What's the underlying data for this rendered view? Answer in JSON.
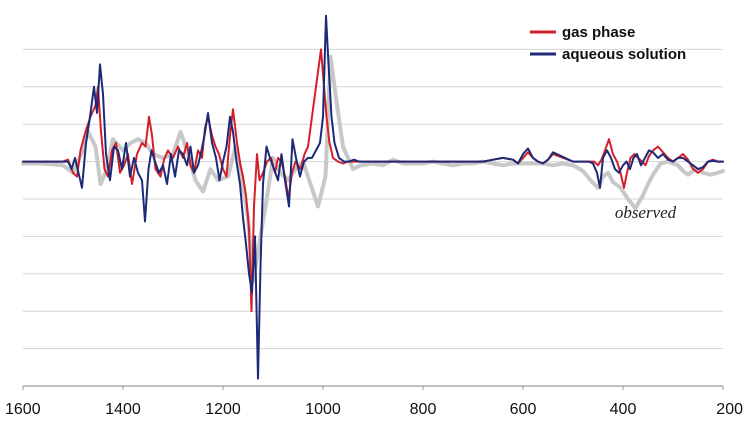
{
  "chart_data": {
    "type": "line",
    "title": "",
    "xlabel": "",
    "ylabel": "",
    "xlim": [
      1600,
      200
    ],
    "ylim": [
      -6,
      4
    ],
    "x_ticks": [
      1600,
      1400,
      1200,
      1000,
      800,
      600,
      400,
      200
    ],
    "x_tick_labels": [
      "1600",
      "1400",
      "1200",
      "1000",
      "800",
      "600",
      "400",
      "200"
    ],
    "gridlines_y": [
      -5,
      -4,
      -3,
      -2,
      -1,
      0,
      1,
      2,
      3
    ],
    "grid": true,
    "legend_position": "top-right",
    "legend": [
      {
        "name": "gas phase",
        "color": "#d41f2a"
      },
      {
        "name": "aqueous solution",
        "color": "#1c2a78"
      }
    ],
    "annotations": [
      {
        "text": "observed",
        "x": 355,
        "y": -1.3
      }
    ],
    "series": [
      {
        "name": "observed",
        "color": "#c8c8c8",
        "x": [
          1600,
          1560,
          1520,
          1500,
          1480,
          1470,
          1455,
          1445,
          1435,
          1420,
          1400,
          1385,
          1370,
          1355,
          1340,
          1320,
          1300,
          1285,
          1270,
          1255,
          1240,
          1225,
          1210,
          1190,
          1175,
          1165,
          1150,
          1140,
          1125,
          1115,
          1100,
          1085,
          1070,
          1055,
          1040,
          1025,
          1010,
          995,
          985,
          975,
          960,
          950,
          940,
          925,
          900,
          880,
          860,
          840,
          820,
          800,
          780,
          760,
          740,
          720,
          700,
          680,
          660,
          640,
          620,
          600,
          580,
          560,
          540,
          520,
          500,
          480,
          465,
          450,
          440,
          430,
          420,
          405,
          390,
          375,
          360,
          350,
          340,
          325,
          310,
          300,
          290,
          280,
          270,
          255,
          240,
          225,
          210,
          200
        ],
        "y": [
          -0.05,
          -0.05,
          -0.1,
          -0.3,
          0.3,
          0.8,
          0.4,
          -0.6,
          -0.3,
          0.6,
          0.3,
          0.5,
          0.6,
          0.5,
          0.2,
          0.1,
          0.2,
          0.8,
          0.2,
          -0.5,
          -0.8,
          -0.2,
          -0.5,
          -0.4,
          0.4,
          -0.2,
          -1.5,
          -3.2,
          -2.0,
          -1.2,
          0.1,
          -0.3,
          -0.5,
          -0.2,
          0.0,
          -0.6,
          -1.2,
          -0.4,
          2.8,
          1.8,
          0.4,
          0.1,
          -0.2,
          -0.1,
          -0.05,
          -0.1,
          0.05,
          -0.05,
          -0.05,
          -0.05,
          0.0,
          -0.05,
          -0.1,
          -0.05,
          -0.05,
          0.0,
          -0.05,
          -0.1,
          -0.05,
          -0.05,
          -0.05,
          -0.05,
          -0.1,
          -0.05,
          -0.1,
          -0.25,
          -0.5,
          -0.7,
          -0.4,
          -0.3,
          -0.55,
          -0.7,
          -1.0,
          -1.25,
          -0.9,
          -0.6,
          -0.35,
          -0.05,
          0.0,
          -0.05,
          -0.1,
          -0.25,
          -0.35,
          -0.2,
          -0.3,
          -0.35,
          -0.3,
          -0.25
        ]
      },
      {
        "name": "gas phase",
        "color": "#d41f2a",
        "x": [
          1600,
          1520,
          1510,
          1500,
          1492,
          1485,
          1475,
          1465,
          1455,
          1450,
          1444,
          1437,
          1430,
          1422,
          1414,
          1406,
          1398,
          1390,
          1382,
          1372,
          1362,
          1355,
          1348,
          1342,
          1335,
          1325,
          1318,
          1310,
          1300,
          1290,
          1280,
          1272,
          1265,
          1258,
          1250,
          1242,
          1236,
          1230,
          1222,
          1215,
          1208,
          1200,
          1193,
          1186,
          1180,
          1172,
          1165,
          1160,
          1154,
          1148,
          1143,
          1138,
          1132,
          1127,
          1120,
          1112,
          1104,
          1096,
          1090,
          1083,
          1076,
          1069,
          1062,
          1055,
          1045,
          1037,
          1030,
          1022,
          1012,
          1004,
          998,
          993,
          987,
          980,
          970,
          960,
          950,
          940,
          930,
          900,
          860,
          800,
          760,
          740,
          720,
          700,
          680,
          660,
          640,
          620,
          610,
          600,
          590,
          580,
          570,
          560,
          550,
          540,
          500,
          480,
          470,
          465,
          458,
          450,
          443,
          436,
          428,
          420,
          412,
          405,
          398,
          392,
          385,
          377,
          370,
          362,
          355,
          348,
          340,
          330,
          320,
          310,
          300,
          290,
          280,
          270,
          260,
          250,
          240,
          230,
          220,
          210,
          200
        ],
        "y": [
          0,
          0,
          0.05,
          -0.3,
          -0.4,
          0.3,
          0.8,
          1.2,
          1.5,
          2.0,
          0.8,
          -0.2,
          -0.4,
          0.3,
          0.5,
          -0.3,
          -0.1,
          0.2,
          -0.6,
          0.2,
          0.5,
          0.4,
          1.2,
          0.7,
          -0.2,
          -0.4,
          0.05,
          0.3,
          0.1,
          0.4,
          0.1,
          0.5,
          -0.1,
          -0.3,
          0.3,
          0.1,
          0.9,
          1.2,
          0.7,
          0.4,
          0.2,
          -0.2,
          -0.4,
          0.7,
          1.4,
          0.5,
          -0.1,
          -0.4,
          -0.9,
          -1.8,
          -4.0,
          -1.2,
          0.2,
          -0.5,
          -0.3,
          0.0,
          0.1,
          -0.3,
          0.1,
          0.0,
          -0.4,
          -1.0,
          -0.3,
          0.0,
          -0.2,
          0.2,
          0.4,
          1.2,
          2.2,
          3.0,
          2.0,
          1.2,
          0.5,
          0.1,
          0.0,
          -0.05,
          0.0,
          0.0,
          0.0,
          0.0,
          0.0,
          0.0,
          0.0,
          0.0,
          0.0,
          0.0,
          0.0,
          0.05,
          0.1,
          0.05,
          -0.05,
          0.1,
          0.25,
          0.1,
          0.0,
          -0.05,
          0.05,
          0.2,
          0.0,
          0.0,
          0.0,
          0.0,
          0.0,
          -0.1,
          0.05,
          0.3,
          0.6,
          0.2,
          0.0,
          -0.3,
          -0.7,
          -0.3,
          0.1,
          0.2,
          0.1,
          0.0,
          -0.1,
          0.15,
          0.3,
          0.4,
          0.25,
          0.1,
          0.0,
          0.1,
          0.2,
          0.05,
          -0.2,
          -0.3,
          -0.2,
          0.0,
          0.05,
          0.0,
          0.0
        ]
      },
      {
        "name": "aqueous solution",
        "color": "#1c2a78",
        "x": [
          1600,
          1520,
          1510,
          1503,
          1496,
          1489,
          1482,
          1474,
          1466,
          1458,
          1452,
          1446,
          1440,
          1434,
          1426,
          1418,
          1410,
          1402,
          1394,
          1386,
          1378,
          1370,
          1362,
          1356,
          1349,
          1343,
          1336,
          1328,
          1320,
          1312,
          1304,
          1296,
          1288,
          1280,
          1272,
          1265,
          1258,
          1250,
          1243,
          1237,
          1230,
          1222,
          1214,
          1207,
          1200,
          1193,
          1186,
          1180,
          1173,
          1166,
          1160,
          1154,
          1148,
          1142,
          1136,
          1130,
          1125,
          1120,
          1113,
          1106,
          1098,
          1090,
          1083,
          1076,
          1068,
          1061,
          1054,
          1046,
          1038,
          1030,
          1022,
          1014,
          1006,
          1000,
          994,
          989,
          983,
          977,
          968,
          958,
          948,
          938,
          928,
          900,
          860,
          800,
          760,
          740,
          720,
          700,
          680,
          660,
          640,
          620,
          610,
          600,
          590,
          580,
          570,
          560,
          550,
          540,
          500,
          485,
          475,
          468,
          460,
          452,
          446,
          440,
          432,
          424,
          416,
          408,
          400,
          393,
          386,
          379,
          372,
          364,
          356,
          348,
          340,
          330,
          320,
          310,
          300,
          290,
          280,
          270,
          260,
          250,
          240,
          230,
          220,
          210,
          200
        ],
        "y": [
          0,
          0,
          0.0,
          -0.2,
          0.1,
          -0.3,
          -0.7,
          0.5,
          1.2,
          2.0,
          1.3,
          2.6,
          1.8,
          0.2,
          -0.5,
          0.4,
          0.3,
          -0.2,
          0.5,
          -0.4,
          0.1,
          -0.3,
          -0.5,
          -1.6,
          -0.2,
          0.3,
          0.0,
          -0.3,
          -0.1,
          -0.6,
          0.2,
          -0.4,
          0.3,
          0.2,
          -0.1,
          0.4,
          -0.3,
          -0.1,
          0.3,
          0.7,
          1.3,
          0.5,
          0.1,
          -0.5,
          0.0,
          0.4,
          1.2,
          0.8,
          0.0,
          -0.6,
          -1.5,
          -2.2,
          -3.0,
          -3.5,
          -2.0,
          -5.8,
          -2.8,
          -0.6,
          0.4,
          0.1,
          -0.2,
          -0.5,
          0.2,
          -0.5,
          -1.2,
          0.6,
          0.1,
          -0.4,
          0.0,
          0.1,
          0.1,
          0.3,
          0.5,
          1.2,
          3.9,
          2.6,
          1.2,
          0.5,
          0.1,
          0.0,
          0.0,
          0.05,
          0.0,
          0.0,
          0.0,
          0.0,
          0.0,
          0.0,
          0.0,
          0.0,
          0.0,
          0.05,
          0.1,
          0.05,
          -0.05,
          0.2,
          0.35,
          0.1,
          0.0,
          -0.05,
          0.05,
          0.25,
          0.0,
          0.0,
          0.0,
          0.0,
          -0.05,
          -0.3,
          -0.7,
          0.1,
          0.3,
          0.1,
          -0.2,
          -0.3,
          -0.1,
          0.0,
          -0.2,
          0.1,
          0.2,
          -0.1,
          0.1,
          0.3,
          0.25,
          0.1,
          0.2,
          0.05,
          0.0,
          0.1,
          0.1,
          0.0,
          -0.1,
          -0.2,
          -0.15,
          0.0,
          0.02,
          0.0,
          0.0
        ]
      }
    ]
  }
}
